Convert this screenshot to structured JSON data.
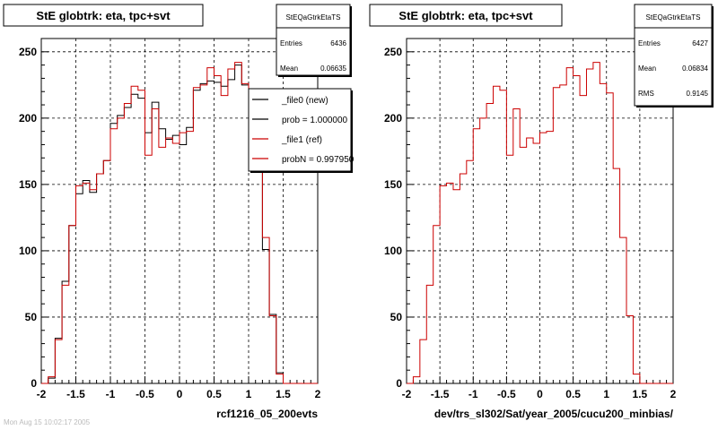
{
  "chart_data": [
    {
      "type": "histogram",
      "title": "StE globtrk: eta, tpc+svt",
      "stats": {
        "name": "StEQaGtrkEtaTS",
        "rows": [
          {
            "label": "Entries",
            "value": "6436"
          },
          {
            "label": "Mean",
            "value": "0.06635"
          }
        ]
      },
      "xlabel": "rcf1216_05_200evts",
      "xlim": [
        -2,
        2
      ],
      "ylim": [
        0,
        260
      ],
      "x_ticks": [
        "-2",
        "-1.5",
        "-1",
        "-0.5",
        "0",
        "0.5",
        "1",
        "1.5",
        "2"
      ],
      "y_ticks": [
        "0",
        "50",
        "100",
        "150",
        "200",
        "250"
      ],
      "grid": true,
      "bin_edges_start": -2.0,
      "bin_width": 0.1,
      "series": [
        {
          "name": "_file0 (new)",
          "color": "#000000",
          "values": [
            0,
            4,
            34,
            77,
            119,
            143,
            153,
            144,
            158,
            168,
            196,
            202,
            208,
            218,
            215,
            189,
            212,
            192,
            184,
            187,
            180,
            193,
            221,
            226,
            228,
            227,
            224,
            229,
            240,
            225,
            209,
            160,
            101,
            52,
            8,
            0,
            0,
            0,
            0,
            0
          ]
        },
        {
          "name": "_file1 (ref)",
          "color": "#cc0000",
          "values": [
            0,
            5,
            33,
            74,
            119,
            149,
            151,
            146,
            158,
            168,
            192,
            200,
            211,
            224,
            221,
            172,
            207,
            178,
            185,
            181,
            189,
            190,
            223,
            225,
            238,
            232,
            217,
            237,
            242,
            226,
            219,
            162,
            110,
            51,
            7,
            0,
            0,
            0,
            0,
            0
          ]
        }
      ],
      "legend": [
        {
          "label": "_file0 (new)",
          "color": "#000000"
        },
        {
          "label": "prob = 1.000000",
          "color": "#000000"
        },
        {
          "label": "_file1 (ref)",
          "color": "#cc0000"
        },
        {
          "label": "probN = 0.997950",
          "color": "#cc0000"
        }
      ]
    },
    {
      "type": "histogram",
      "title": "StE globtrk: eta, tpc+svt",
      "stats": {
        "name": "StEQaGtrkEtaTS",
        "rows": [
          {
            "label": "Entries",
            "value": "6427"
          },
          {
            "label": "Mean",
            "value": "0.06834"
          },
          {
            "label": "RMS",
            "value": "0.9145"
          }
        ]
      },
      "xlabel": "dev/trs_sl302/Sat/year_2005/cucu200_minbias/",
      "xlim": [
        -2,
        2
      ],
      "ylim": [
        0,
        260
      ],
      "x_ticks": [
        "-2",
        "-1.5",
        "-1",
        "-0.5",
        "0",
        "0.5",
        "1",
        "1.5",
        "2"
      ],
      "y_ticks": [
        "0",
        "50",
        "100",
        "150",
        "200",
        "250"
      ],
      "grid": true,
      "bin_edges_start": -2.0,
      "bin_width": 0.1,
      "series": [
        {
          "name": "",
          "color": "#cc0000",
          "values": [
            0,
            5,
            33,
            74,
            119,
            149,
            151,
            146,
            158,
            168,
            192,
            200,
            211,
            224,
            221,
            172,
            207,
            178,
            185,
            181,
            189,
            190,
            223,
            225,
            238,
            232,
            217,
            237,
            242,
            226,
            219,
            162,
            110,
            51,
            7,
            0,
            0,
            0,
            0,
            0
          ]
        }
      ]
    }
  ],
  "footer_text": "Mon Aug 15 10:02:17 2005"
}
